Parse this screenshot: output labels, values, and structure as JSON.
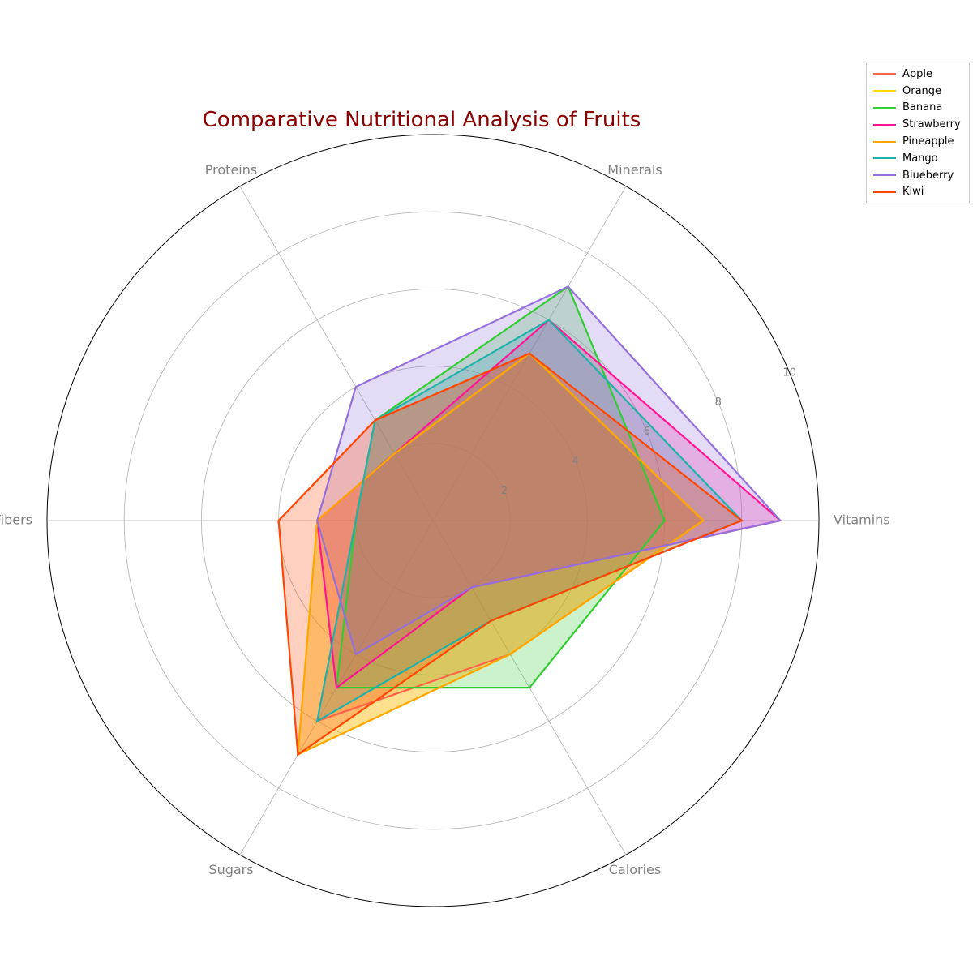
{
  "chart_data": {
    "type": "radar",
    "title": "Comparative Nutritional Analysis of Fruits",
    "axes": [
      "Vitamins",
      "Minerals",
      "Proteins",
      "Fibers",
      "Sugars",
      "Calories"
    ],
    "rlim": [
      0,
      10
    ],
    "rticks": [
      "2",
      "4",
      "6",
      "8",
      "10"
    ],
    "grid": true,
    "legend_position": "top-right",
    "series": [
      {
        "name": "Apple",
        "color": "#ff6347",
        "values": [
          7,
          5,
          3,
          2,
          6,
          4
        ]
      },
      {
        "name": "Orange",
        "color": "#ffd700",
        "values": [
          7,
          5,
          2,
          3,
          7,
          4
        ]
      },
      {
        "name": "Banana",
        "color": "#32cd32",
        "values": [
          6,
          7,
          3,
          2,
          5,
          5
        ]
      },
      {
        "name": "Strawberry",
        "color": "#ff1493",
        "values": [
          9,
          6,
          2,
          3,
          5,
          2
        ]
      },
      {
        "name": "Pineapple",
        "color": "#ffa500",
        "values": [
          7,
          5,
          2,
          3,
          7,
          4
        ]
      },
      {
        "name": "Mango",
        "color": "#20b2aa",
        "values": [
          8,
          6,
          3,
          2,
          6,
          3
        ]
      },
      {
        "name": "Blueberry",
        "color": "#9370db",
        "values": [
          9,
          7,
          4,
          3,
          4,
          2
        ]
      },
      {
        "name": "Kiwi",
        "color": "#ff4500",
        "values": [
          8,
          5,
          3,
          4,
          7,
          3
        ]
      }
    ]
  }
}
